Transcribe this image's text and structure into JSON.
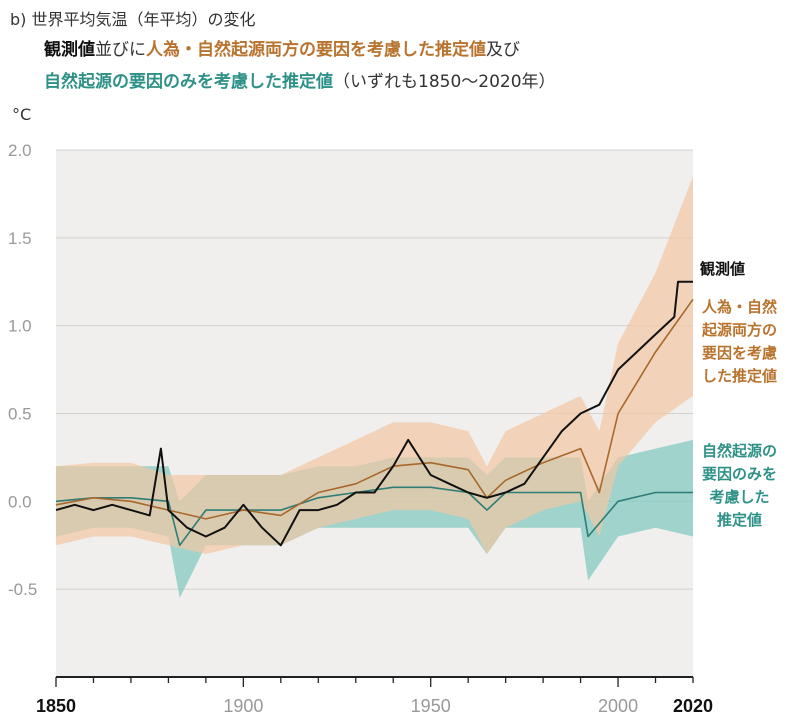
{
  "title": {
    "prefix": "b)",
    "line1": "世界平均気温（年平均）の変化",
    "obs": "観測値",
    "join1": "並びに",
    "both": "人為・自然起源両方の要因を考慮した推定値",
    "join2": "及び",
    "nat": "自然起源の要因のみを考慮した推定値",
    "range": "（いずれも1850～2020年）"
  },
  "unit": "°C",
  "legend": {
    "observed": "観測値",
    "both": [
      "人為・自然",
      "起源両方の",
      "要因を考慮",
      "した推定値"
    ],
    "natural": [
      "自然起源の",
      "要因のみを",
      "考慮した",
      "推定値"
    ]
  },
  "colors": {
    "observed": "#111111",
    "both_line": "#a8682c",
    "both_band": "#f2c7a3",
    "natural_line": "#2e7d76",
    "natural_band": "#7cc7bd",
    "plot_bg": "#f0efee"
  },
  "chart_data": {
    "type": "line",
    "title": "世界平均気温（年平均）の変化",
    "ylabel": "°C",
    "xlim": [
      1850,
      2020
    ],
    "ylim": [
      -1.0,
      2.0
    ],
    "x_ticks": [
      1850,
      1900,
      1950,
      2000,
      2020
    ],
    "y_ticks": [
      2.0,
      1.5,
      1.0,
      0.5,
      0.0,
      -0.5
    ],
    "y_tick_labels": [
      "2.0",
      "1.5",
      "1.0",
      "0.5",
      "0.0",
      "-0.5"
    ],
    "series": [
      {
        "name": "観測値",
        "x": [
          1850,
          1855,
          1860,
          1865,
          1870,
          1875,
          1878,
          1880,
          1885,
          1890,
          1895,
          1900,
          1905,
          1910,
          1915,
          1920,
          1925,
          1930,
          1935,
          1940,
          1944,
          1950,
          1955,
          1960,
          1965,
          1970,
          1975,
          1980,
          1985,
          1990,
          1995,
          2000,
          2005,
          2010,
          2015,
          2016,
          2020
        ],
        "y": [
          -0.05,
          -0.02,
          -0.05,
          -0.02,
          -0.05,
          -0.08,
          0.3,
          -0.05,
          -0.15,
          -0.2,
          -0.15,
          -0.02,
          -0.15,
          -0.25,
          -0.05,
          -0.05,
          -0.02,
          0.05,
          0.05,
          0.2,
          0.35,
          0.15,
          0.1,
          0.05,
          0.02,
          0.05,
          0.1,
          0.25,
          0.4,
          0.5,
          0.55,
          0.75,
          0.85,
          0.95,
          1.05,
          1.25,
          1.25
        ]
      },
      {
        "name": "人為・自然起源両方の要因を考慮した推定値",
        "x": [
          1850,
          1860,
          1870,
          1880,
          1890,
          1900,
          1910,
          1920,
          1930,
          1940,
          1950,
          1960,
          1965,
          1970,
          1980,
          1990,
          1995,
          2000,
          2010,
          2020
        ],
        "y": [
          -0.02,
          0.02,
          0.0,
          -0.05,
          -0.1,
          -0.05,
          -0.08,
          0.05,
          0.1,
          0.2,
          0.22,
          0.18,
          0.02,
          0.12,
          0.22,
          0.3,
          0.05,
          0.5,
          0.85,
          1.15
        ],
        "lower": [
          -0.25,
          -0.2,
          -0.2,
          -0.25,
          -0.3,
          -0.25,
          -0.25,
          -0.15,
          -0.1,
          -0.05,
          -0.05,
          -0.1,
          -0.3,
          -0.15,
          -0.05,
          0.0,
          -0.2,
          0.2,
          0.45,
          0.6
        ],
        "upper": [
          0.2,
          0.22,
          0.22,
          0.15,
          0.15,
          0.15,
          0.15,
          0.25,
          0.35,
          0.45,
          0.45,
          0.4,
          0.2,
          0.4,
          0.5,
          0.6,
          0.4,
          0.9,
          1.3,
          1.85
        ]
      },
      {
        "name": "自然起源の要因のみを考慮した推定値",
        "x": [
          1850,
          1860,
          1870,
          1880,
          1883,
          1890,
          1900,
          1910,
          1920,
          1930,
          1940,
          1950,
          1960,
          1965,
          1970,
          1980,
          1990,
          1992,
          2000,
          2010,
          2020
        ],
        "y": [
          0.0,
          0.02,
          0.02,
          0.0,
          -0.25,
          -0.05,
          -0.05,
          -0.05,
          0.02,
          0.05,
          0.08,
          0.08,
          0.05,
          -0.05,
          0.05,
          0.05,
          0.05,
          -0.2,
          0.0,
          0.05,
          0.05
        ],
        "lower": [
          -0.2,
          -0.15,
          -0.15,
          -0.2,
          -0.55,
          -0.25,
          -0.25,
          -0.25,
          -0.15,
          -0.15,
          -0.15,
          -0.15,
          -0.15,
          -0.3,
          -0.15,
          -0.15,
          -0.15,
          -0.45,
          -0.2,
          -0.15,
          -0.2
        ],
        "upper": [
          0.2,
          0.2,
          0.2,
          0.2,
          0.0,
          0.15,
          0.15,
          0.15,
          0.2,
          0.2,
          0.25,
          0.25,
          0.25,
          0.15,
          0.25,
          0.25,
          0.25,
          0.0,
          0.25,
          0.3,
          0.35
        ]
      }
    ]
  }
}
